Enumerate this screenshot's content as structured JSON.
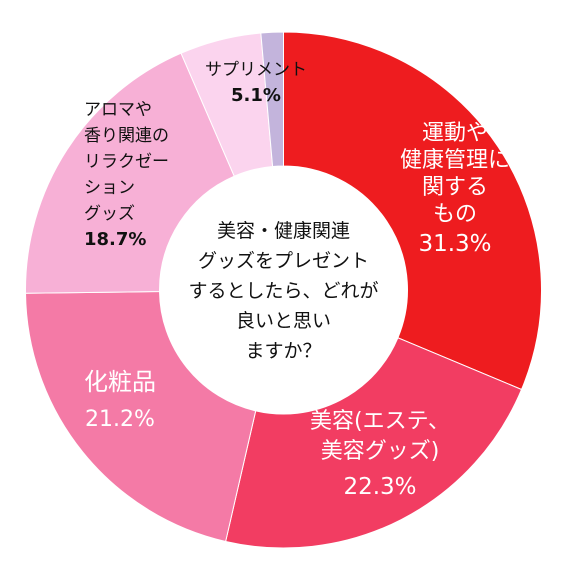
{
  "chart_data": {
    "type": "pie",
    "center_text": [
      "美容・健康関連",
      "グッズをプレゼント",
      "するとしたら、どれが",
      "良いと思い",
      "ますか？"
    ],
    "slices": [
      {
        "label_lines": [
          "運動や",
          "健康管理に",
          "関する",
          "もの"
        ],
        "value": 31.3,
        "value_text": "31.3%",
        "color": "#ee1c1f",
        "label_color": "#ffffff"
      },
      {
        "label_lines": [
          "美容(エステ、",
          "美容グッズ)"
        ],
        "value": 22.3,
        "value_text": "22.3%",
        "color": "#f23d62",
        "label_color": "#ffffff"
      },
      {
        "label_lines": [
          "化粧品"
        ],
        "value": 21.2,
        "value_text": "21.2%",
        "color": "#f47aa6",
        "label_color": "#ffffff"
      },
      {
        "label_lines": [
          "アロマや",
          "香り関連の",
          "リラクゼー",
          "ション",
          "グッズ"
        ],
        "value": 18.7,
        "value_text": "18.7%",
        "color": "#f7b0d6",
        "label_color": "#111111"
      },
      {
        "label_lines": [
          "サプリメント"
        ],
        "value": 5.1,
        "value_text": "5.1%",
        "color": "#fbd4ee",
        "label_color": "#111111"
      },
      {
        "label_lines": [
          ""
        ],
        "value": 1.4,
        "value_text": "",
        "color": "#c3b4dc",
        "label_color": "#111111"
      }
    ]
  }
}
